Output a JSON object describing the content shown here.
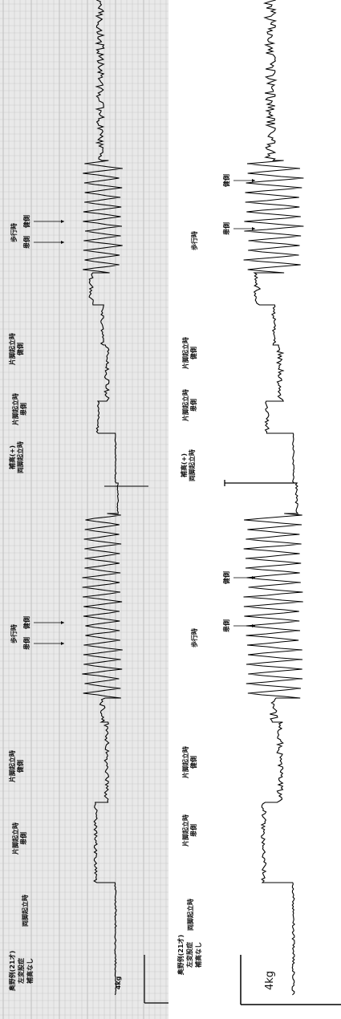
{
  "left_panel": {
    "title_lines": [
      "奥野例(21才)",
      "左変股症",
      "補高なし"
    ],
    "segments": [
      {
        "lines": [
          "両脚起立時"
        ]
      },
      {
        "lines": [
          "片脚起立時",
          "患側"
        ]
      },
      {
        "lines": [
          "片脚起立時",
          "健側"
        ]
      },
      {
        "lines": [
          "歩行時"
        ],
        "arrows": [
          "患側",
          "健側"
        ]
      },
      {
        "lines": [
          "補高(+)",
          "両脚起立時"
        ]
      },
      {
        "lines": [
          "片脚起立時",
          "患側"
        ]
      },
      {
        "lines": [
          "片脚起立時",
          "健側"
        ]
      },
      {
        "lines": [
          "歩行時"
        ],
        "arrows": [
          "患側",
          "健側"
        ]
      }
    ],
    "scale": "4kg"
  },
  "right_panel": {
    "title_lines": [
      "奥野例(21才)",
      "左変股症",
      "補高なし"
    ],
    "segments": [
      {
        "lines": [
          "両脚起立時"
        ]
      },
      {
        "lines": [
          "片脚起立時",
          "患側"
        ]
      },
      {
        "lines": [
          "片脚起立時",
          "健側"
        ]
      },
      {
        "lines": [
          "歩行時"
        ],
        "arrows": [
          "患側",
          "健側"
        ]
      },
      {
        "lines": [
          "補高(+)",
          "両脚起立時"
        ]
      },
      {
        "lines": [
          "片脚起立時",
          "患側"
        ]
      },
      {
        "lines": [
          "片脚起立時",
          "健側"
        ]
      },
      {
        "lines": [
          "歩行時"
        ],
        "arrows": [
          "患側",
          "健側"
        ]
      }
    ],
    "scale": "4kg"
  }
}
